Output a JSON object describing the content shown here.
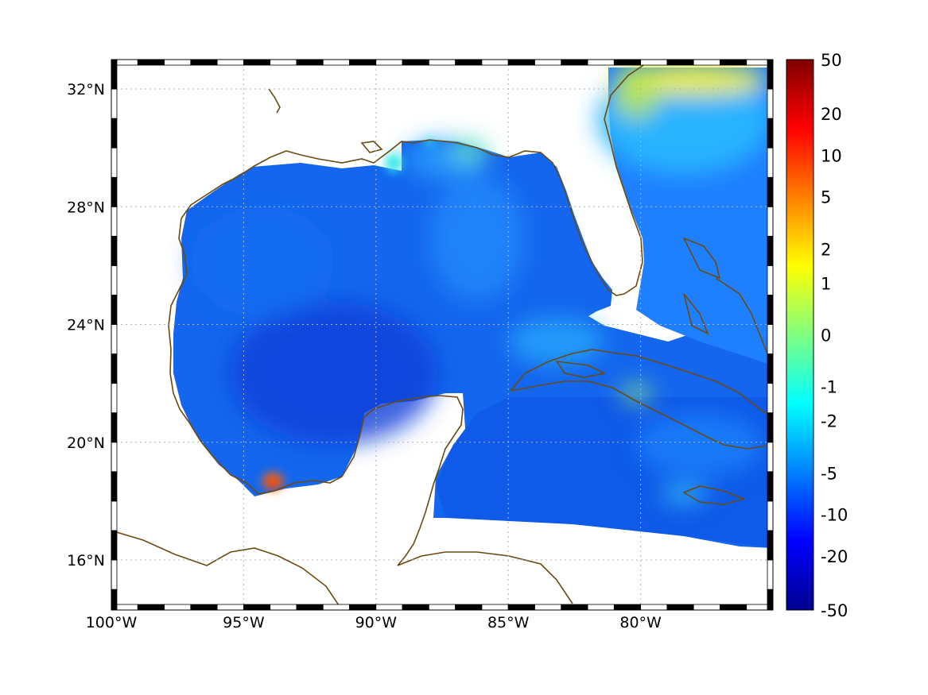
{
  "map": {
    "lon_labels": [
      "100°W",
      "95°W",
      "90°W",
      "85°W",
      "80°W"
    ],
    "lon_values": [
      -100,
      -95,
      -90,
      -85,
      -80
    ],
    "lat_labels": [
      "32°N",
      "28°N",
      "24°N",
      "20°N",
      "16°N"
    ],
    "lat_values": [
      32,
      28,
      24,
      20,
      16
    ],
    "extent": {
      "lon": [
        -100,
        -75
      ],
      "lat": [
        14.3,
        33
      ]
    },
    "grid": true,
    "frame": "black-white-dashed",
    "coastline_color": "#6b4a12",
    "land_color": "#ffffff"
  },
  "colorbar": {
    "labels": [
      "50",
      "20",
      "10",
      "5",
      "2",
      "1",
      "0",
      "-1",
      "-2",
      "-5",
      "-10",
      "-20",
      "-50"
    ],
    "colormap": "jet",
    "placement": "right"
  }
}
